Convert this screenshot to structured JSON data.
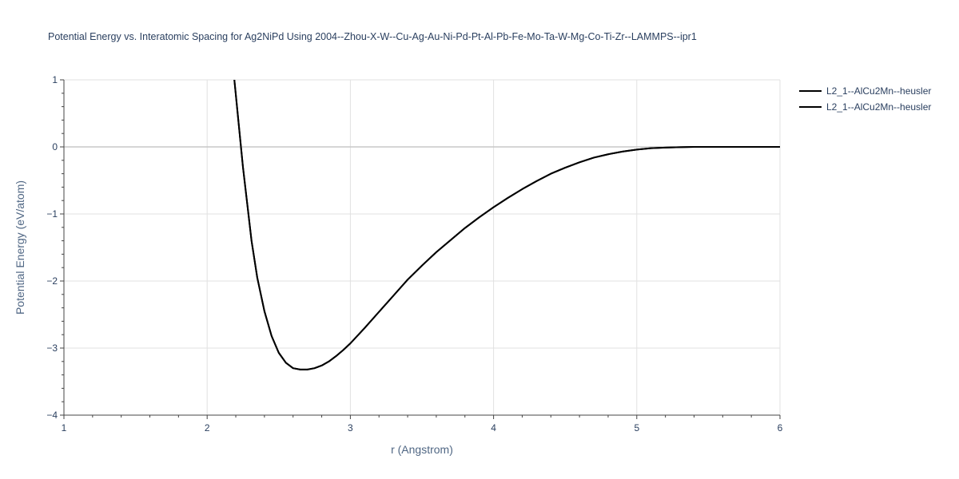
{
  "chart_data": {
    "type": "line",
    "title": "Potential Energy vs. Interatomic Spacing for Ag2NiPd Using 2004--Zhou-X-W--Cu-Ag-Au-Ni-Pd-Pt-Al-Pb-Fe-Mo-Ta-W-Mg-Co-Ti-Zr--LAMMPS--ipr1",
    "xlabel": "r (Angstrom)",
    "ylabel": "Potential Energy (eV/atom)",
    "xlim": [
      1,
      6
    ],
    "ylim": [
      -4,
      1
    ],
    "xticks": [
      1,
      2,
      3,
      4,
      5,
      6
    ],
    "yticks": [
      -4,
      -3,
      -2,
      -1,
      0,
      1
    ],
    "xtick_labels": [
      "1",
      "2",
      "3",
      "4",
      "5",
      "6"
    ],
    "ytick_labels": [
      "−4",
      "−3",
      "−2",
      "−1",
      "0",
      "1"
    ],
    "grid": true,
    "legend_position": "top-right",
    "line_color": "#000000",
    "series": [
      {
        "name": "L2_1--AlCu2Mn--heusler",
        "x": [
          2.19,
          2.22,
          2.25,
          2.28,
          2.31,
          2.35,
          2.4,
          2.45,
          2.5,
          2.55,
          2.6,
          2.65,
          2.7,
          2.75,
          2.8,
          2.85,
          2.9,
          2.95,
          3.0,
          3.1,
          3.2,
          3.3,
          3.4,
          3.5,
          3.6,
          3.7,
          3.8,
          3.9,
          4.0,
          4.1,
          4.2,
          4.3,
          4.4,
          4.5,
          4.6,
          4.7,
          4.8,
          4.9,
          5.0,
          5.1,
          5.2,
          5.3,
          5.4,
          5.6,
          5.8,
          6.0
        ],
        "y": [
          1.0,
          0.35,
          -0.3,
          -0.85,
          -1.4,
          -1.95,
          -2.45,
          -2.82,
          -3.07,
          -3.22,
          -3.3,
          -3.32,
          -3.32,
          -3.3,
          -3.26,
          -3.2,
          -3.12,
          -3.03,
          -2.93,
          -2.7,
          -2.46,
          -2.22,
          -1.98,
          -1.77,
          -1.57,
          -1.39,
          -1.21,
          -1.05,
          -0.9,
          -0.76,
          -0.63,
          -0.51,
          -0.4,
          -0.31,
          -0.23,
          -0.16,
          -0.11,
          -0.07,
          -0.04,
          -0.02,
          -0.01,
          -0.005,
          0.0,
          0.0,
          0.0,
          0.0
        ]
      },
      {
        "name": "L2_1--AlCu2Mn--heusler",
        "x": [
          2.19,
          2.22,
          2.25,
          2.28,
          2.31,
          2.35,
          2.4,
          2.45,
          2.5,
          2.55,
          2.6,
          2.65,
          2.7,
          2.75,
          2.8,
          2.85,
          2.9,
          2.95,
          3.0,
          3.1,
          3.2,
          3.3,
          3.4,
          3.5,
          3.6,
          3.7,
          3.8,
          3.9,
          4.0,
          4.1,
          4.2,
          4.3,
          4.4,
          4.5,
          4.6,
          4.7,
          4.8,
          4.9,
          5.0,
          5.1,
          5.2,
          5.3,
          5.4,
          5.6,
          5.8,
          6.0
        ],
        "y": [
          1.0,
          0.35,
          -0.3,
          -0.85,
          -1.4,
          -1.95,
          -2.45,
          -2.82,
          -3.07,
          -3.22,
          -3.3,
          -3.32,
          -3.32,
          -3.3,
          -3.26,
          -3.2,
          -3.12,
          -3.03,
          -2.93,
          -2.7,
          -2.46,
          -2.22,
          -1.98,
          -1.77,
          -1.57,
          -1.39,
          -1.21,
          -1.05,
          -0.9,
          -0.76,
          -0.63,
          -0.51,
          -0.4,
          -0.31,
          -0.23,
          -0.16,
          -0.11,
          -0.07,
          -0.04,
          -0.02,
          -0.01,
          -0.005,
          0.0,
          0.0,
          0.0,
          0.0
        ]
      }
    ]
  }
}
